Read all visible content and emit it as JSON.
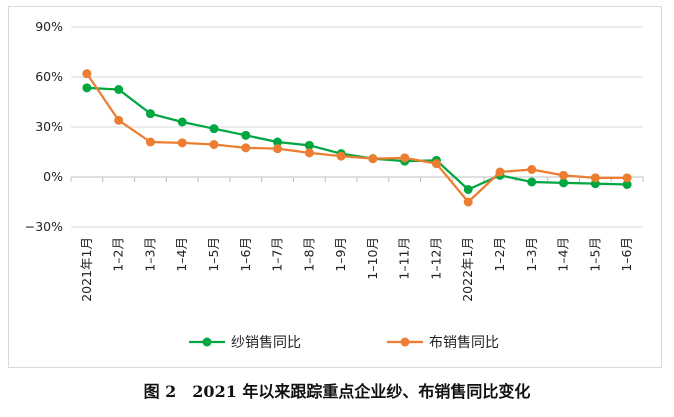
{
  "caption": "图 2　2021 年以来跟踪重点企业纱、布销售同比变化",
  "chart_data": {
    "type": "line",
    "categories": [
      "2021年1月",
      "1–2月",
      "1–3月",
      "1–4月",
      "1–5月",
      "1–6月",
      "1–7月",
      "1–8月",
      "1–9月",
      "1–10月",
      "1–11月",
      "1–12月",
      "2022年1月",
      "1–2月",
      "1–3月",
      "1–4月",
      "1–5月",
      "1–6月"
    ],
    "y_ticks": [
      "90%",
      "60%",
      "30%",
      "0%",
      "−30%"
    ],
    "y_tick_values": [
      90,
      60,
      30,
      0,
      -30
    ],
    "ylim": [
      -30,
      90
    ],
    "grid": "horizontal",
    "legend_position": "bottom",
    "series": [
      {
        "name": "纱销售同比",
        "color": "#00a63f",
        "values": [
          53.5,
          52.5,
          38,
          33,
          29,
          25,
          21,
          19,
          14,
          11,
          9.5,
          10,
          -7.5,
          1,
          -3,
          -3.5,
          -4,
          -4.5
        ]
      },
      {
        "name": "布销售同比",
        "color": "#ed7d31",
        "values": [
          62,
          34,
          21,
          20.5,
          19.5,
          17.5,
          17,
          14.5,
          12.5,
          11,
          11.5,
          8,
          -15,
          3,
          4.5,
          1,
          -0.5,
          -0.5
        ]
      }
    ]
  }
}
